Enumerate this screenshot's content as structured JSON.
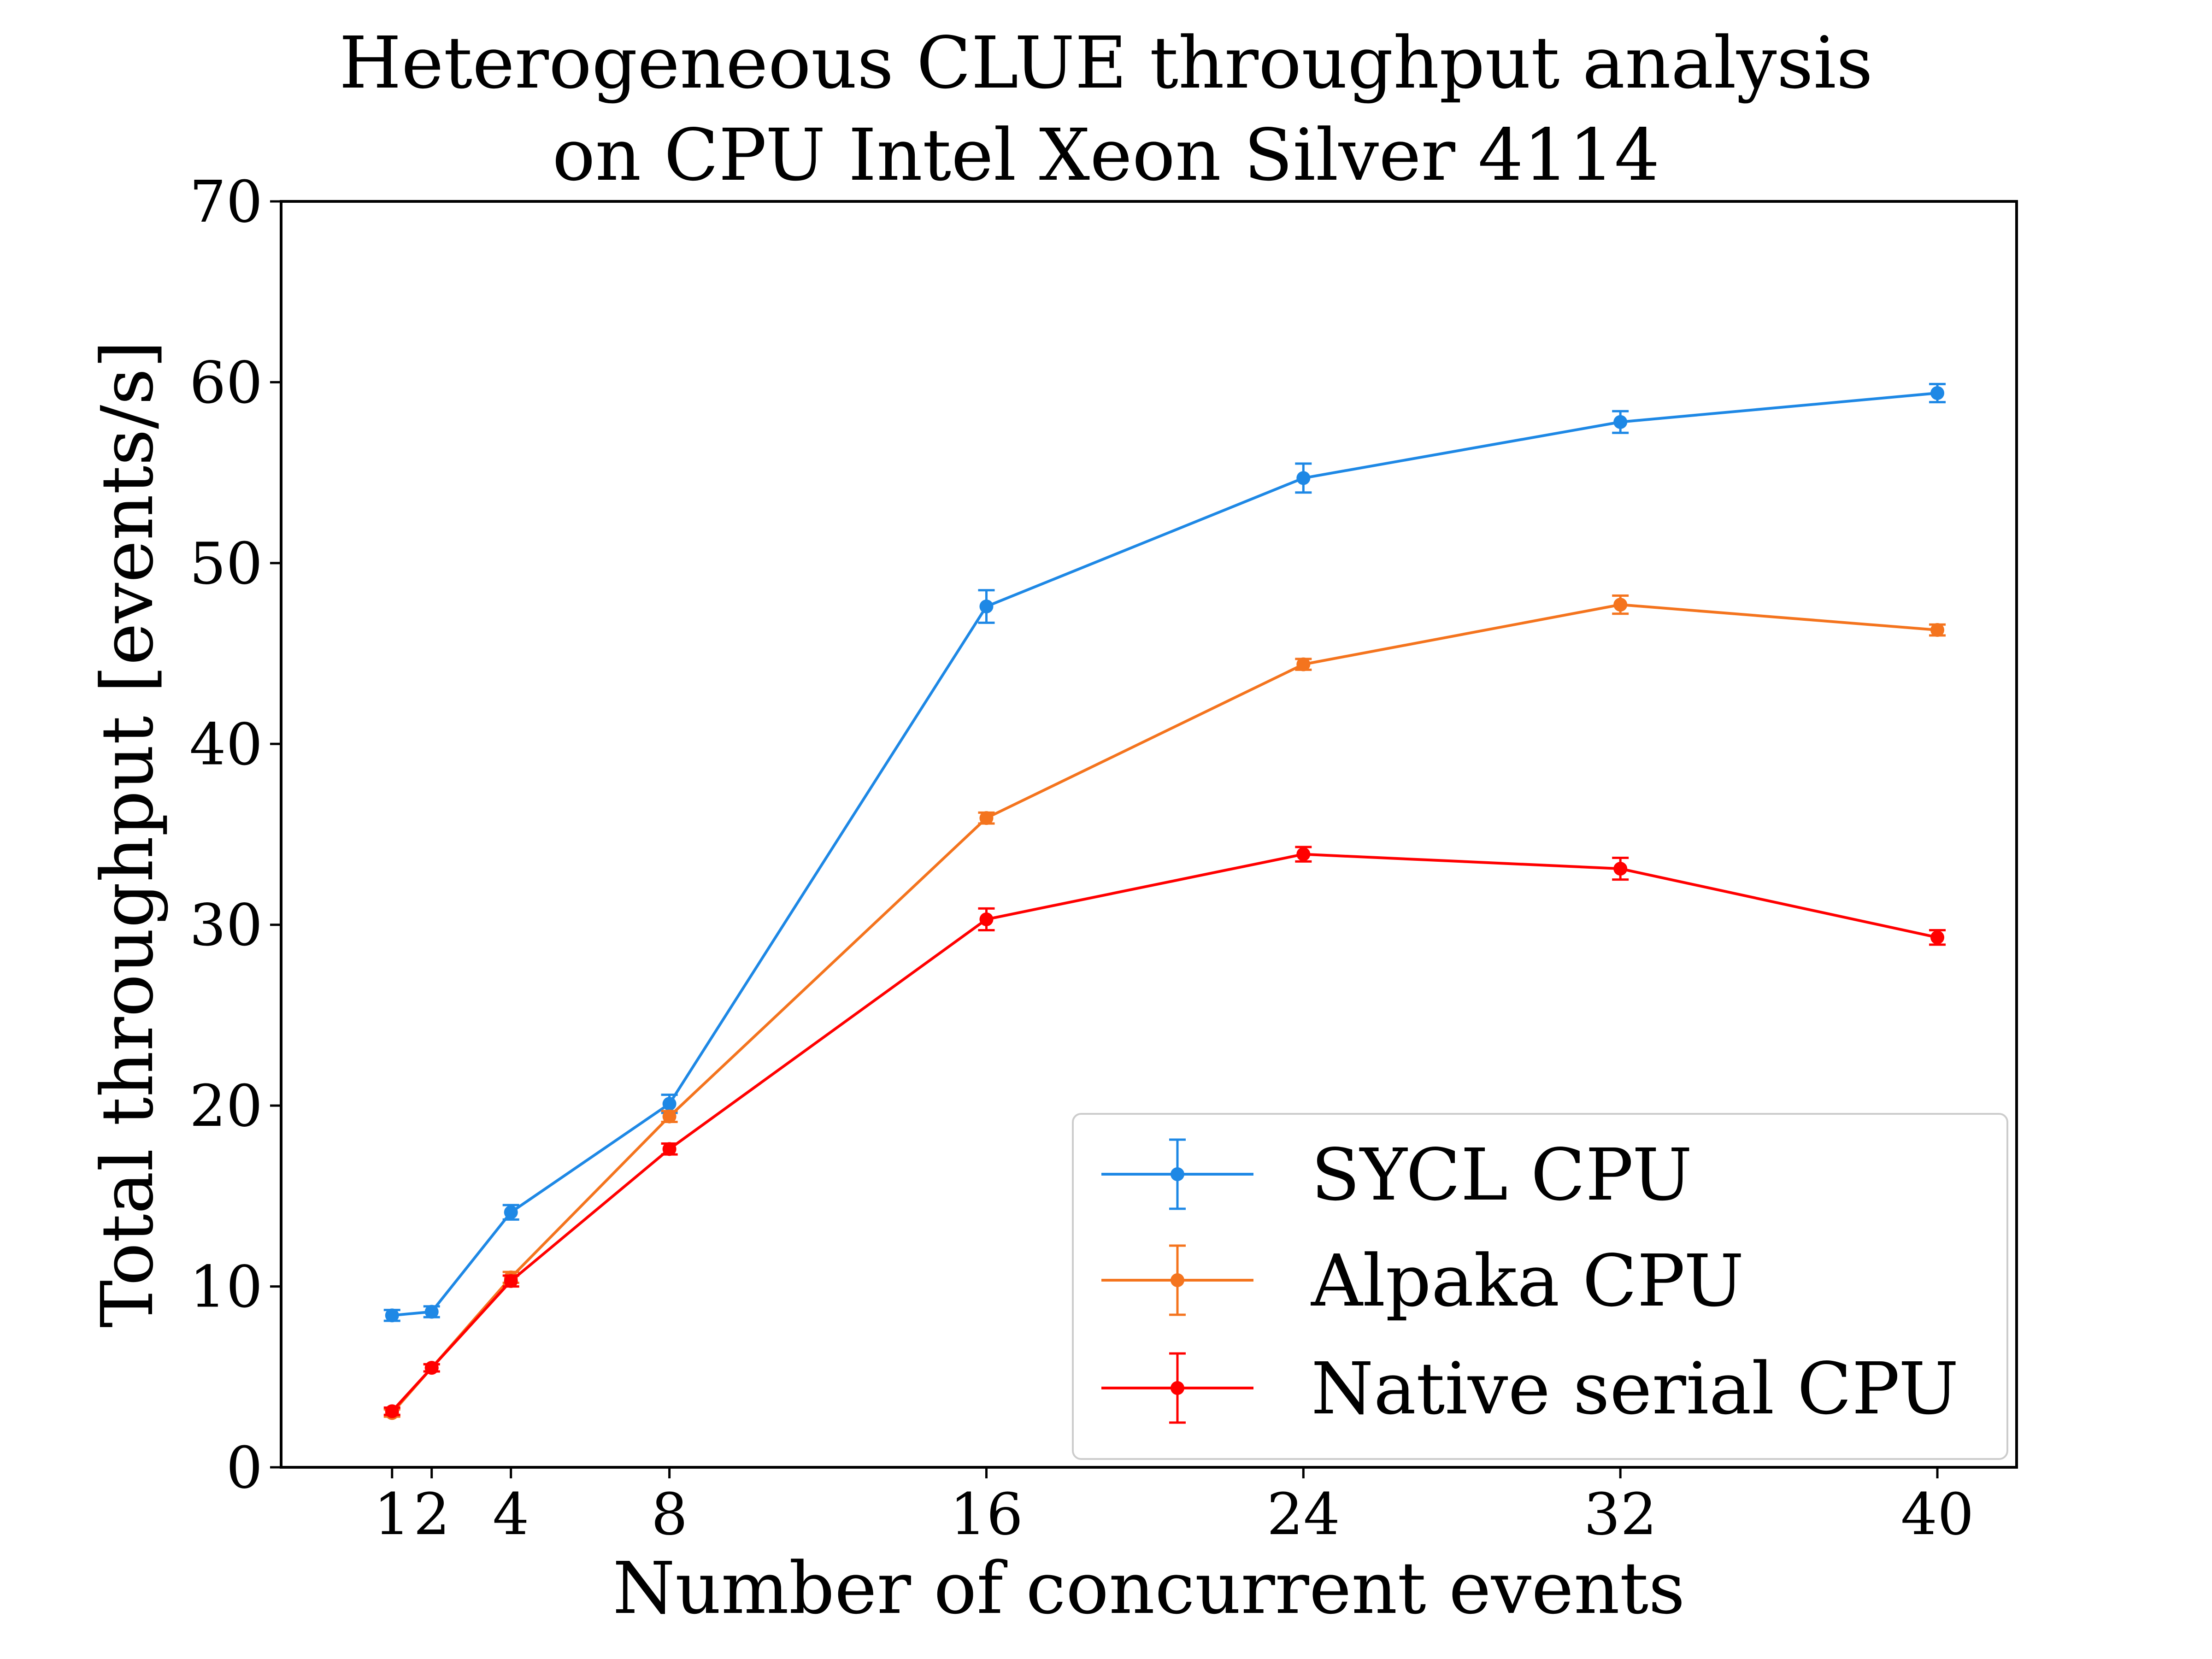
{
  "chart_data": {
    "type": "line",
    "title": [
      "Heterogeneous CLUE throughput analysis",
      "on CPU Intel Xeon Silver 4114"
    ],
    "xlabel": "Number of concurrent events",
    "ylabel": "Total throughput [events/s]",
    "xlim": [
      -1.8,
      42.0
    ],
    "ylim": [
      0,
      70
    ],
    "xticks": [
      1,
      2,
      4,
      8,
      16,
      24,
      32,
      40
    ],
    "xtick_labels": [
      "1",
      "2",
      "4",
      "8",
      "16",
      "24",
      "32",
      "40"
    ],
    "yticks": [
      0,
      10,
      20,
      30,
      40,
      50,
      60,
      70
    ],
    "ytick_labels": [
      "0",
      "10",
      "20",
      "30",
      "40",
      "50",
      "60",
      "70"
    ],
    "grid": false,
    "legend_position": "lower-right",
    "x": [
      1,
      2,
      4,
      8,
      16,
      24,
      32,
      40
    ],
    "series": [
      {
        "name": "SYCL CPU",
        "color": "#1e88e5",
        "values": [
          8.4,
          8.6,
          14.1,
          20.1,
          47.6,
          54.7,
          57.8,
          59.4
        ],
        "errors": [
          0.3,
          0.3,
          0.4,
          0.5,
          0.9,
          0.8,
          0.6,
          0.5
        ]
      },
      {
        "name": "Alpaka CPU",
        "color": "#f4741e",
        "values": [
          3.0,
          5.5,
          10.5,
          19.4,
          35.9,
          44.4,
          47.7,
          46.3
        ],
        "errors": [
          0.2,
          0.2,
          0.3,
          0.3,
          0.3,
          0.3,
          0.5,
          0.3
        ]
      },
      {
        "name": "Native serial CPU",
        "color": "#ff0000",
        "values": [
          3.1,
          5.5,
          10.3,
          17.6,
          30.3,
          33.9,
          33.1,
          29.3
        ],
        "errors": [
          0.2,
          0.2,
          0.3,
          0.3,
          0.6,
          0.4,
          0.6,
          0.4
        ]
      }
    ]
  }
}
